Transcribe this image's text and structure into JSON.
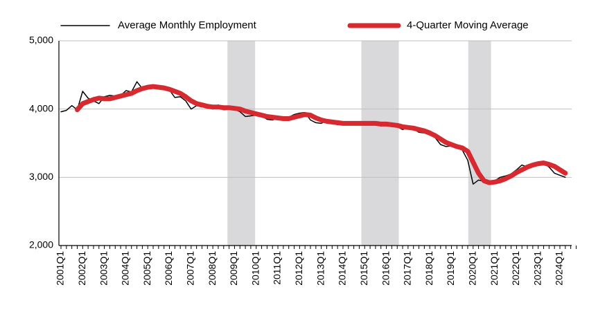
{
  "chart_data": {
    "type": "line",
    "categories": [
      "2001Q1",
      null,
      null,
      null,
      "2002Q1",
      null,
      null,
      null,
      "2003Q1",
      null,
      null,
      null,
      "2004Q1",
      null,
      null,
      null,
      "2005Q1",
      null,
      null,
      null,
      "2006Q1",
      null,
      null,
      null,
      "2007Q1",
      null,
      null,
      null,
      "2008Q1",
      null,
      null,
      null,
      "2009Q1",
      null,
      null,
      null,
      "2010Q1",
      null,
      null,
      null,
      "2011Q1",
      null,
      null,
      null,
      "2012Q1",
      null,
      null,
      null,
      "2013Q1",
      null,
      null,
      null,
      "2014Q1",
      null,
      null,
      null,
      "2015Q1",
      null,
      null,
      null,
      "2016Q1",
      null,
      null,
      null,
      "2017Q1",
      null,
      null,
      null,
      "2018Q1",
      null,
      null,
      null,
      "2019Q1",
      null,
      null,
      null,
      "2020Q1",
      null,
      null,
      null,
      "2021Q1",
      null,
      null,
      null,
      "2022Q1",
      null,
      null,
      null,
      "2023Q1",
      null,
      null,
      null,
      "2024Q1",
      null,
      null,
      null
    ],
    "series": [
      {
        "name": "Average Monthly Employment",
        "color": "#000000",
        "width": 1.5,
        "values": [
          3960,
          3980,
          4050,
          3990,
          4260,
          4160,
          4120,
          4080,
          4180,
          4200,
          4190,
          4200,
          4270,
          4250,
          4400,
          4300,
          4310,
          4330,
          4300,
          4290,
          4280,
          4170,
          4180,
          4120,
          4000,
          4050,
          4030,
          4040,
          4000,
          4060,
          3990,
          4000,
          4000,
          3960,
          3890,
          3900,
          3910,
          3900,
          3850,
          3840,
          3870,
          3860,
          3880,
          3920,
          3940,
          3950,
          3840,
          3800,
          3790,
          3840,
          3800,
          3770,
          3800,
          3780,
          3800,
          3790,
          3780,
          3800,
          3810,
          3750,
          3790,
          3760,
          3740,
          3700,
          3730,
          3710,
          3660,
          3650,
          3620,
          3580,
          3480,
          3450,
          3460,
          3430,
          3400,
          3250,
          2900,
          2960,
          2940,
          2920,
          2950,
          3000,
          3020,
          3050,
          3110,
          3180,
          3150,
          3190,
          3220,
          3210,
          3150,
          3060,
          3030,
          3000,
          null,
          null
        ]
      },
      {
        "name": "4-Quarter Moving Average",
        "color": "#d62a30",
        "width": 7,
        "values": [
          null,
          null,
          null,
          3990,
          4080,
          4110,
          4140,
          4160,
          4150,
          4150,
          4170,
          4190,
          4210,
          4230,
          4270,
          4300,
          4320,
          4330,
          4320,
          4310,
          4290,
          4260,
          4230,
          4180,
          4120,
          4080,
          4060,
          4040,
          4030,
          4030,
          4020,
          4020,
          4010,
          4000,
          3970,
          3950,
          3930,
          3910,
          3890,
          3880,
          3870,
          3860,
          3860,
          3880,
          3900,
          3920,
          3910,
          3870,
          3840,
          3820,
          3810,
          3800,
          3790,
          3790,
          3790,
          3790,
          3790,
          3790,
          3790,
          3780,
          3780,
          3770,
          3760,
          3740,
          3730,
          3720,
          3700,
          3680,
          3650,
          3610,
          3560,
          3510,
          3480,
          3450,
          3430,
          3380,
          3220,
          3060,
          2950,
          2920,
          2930,
          2950,
          2980,
          3020,
          3070,
          3110,
          3150,
          3180,
          3200,
          3210,
          3190,
          3160,
          3110,
          3060,
          null,
          null
        ]
      }
    ],
    "shaded_periods": [
      [
        30.7,
        35.8
      ],
      [
        55.4,
        62.3
      ],
      [
        75.1,
        79.3
      ]
    ],
    "shade_color": "#d9d9db",
    "ylim": [
      2000,
      5000
    ],
    "yticks": [
      {
        "value": 2000,
        "label": "2,000"
      },
      {
        "value": 3000,
        "label": "3,000"
      },
      {
        "value": 4000,
        "label": "4,000"
      },
      {
        "value": 5000,
        "label": "5,000"
      }
    ],
    "grid": true,
    "legend": "top"
  }
}
